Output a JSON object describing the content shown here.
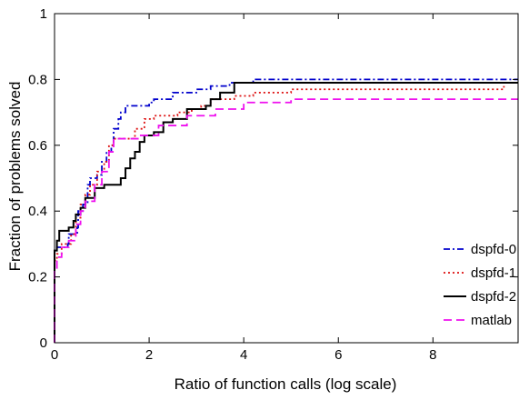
{
  "chart_data": {
    "type": "line",
    "title": "",
    "xlabel": "Ratio of function calls (log scale)",
    "ylabel": "Fraction of problems solved",
    "xlim": [
      0,
      9.8
    ],
    "ylim": [
      0,
      1
    ],
    "xticks": [
      0,
      2,
      4,
      6,
      8
    ],
    "yticks": [
      0,
      0.2,
      0.4,
      0.6,
      0.8,
      1
    ],
    "xtick_labels": [
      "0",
      "2",
      "4",
      "6",
      "8"
    ],
    "ytick_labels": [
      "0",
      "0.2",
      "0.4",
      "0.6",
      "0.8",
      "1"
    ],
    "grid": false,
    "legend_position": "bottom-right",
    "series": [
      {
        "name": "dspfd-0",
        "color": "#0000cc",
        "dash": "dash-dot",
        "points": [
          [
            0,
            0
          ],
          [
            0,
            0.28
          ],
          [
            0.05,
            0.29
          ],
          [
            0.28,
            0.3
          ],
          [
            0.3,
            0.33
          ],
          [
            0.48,
            0.35
          ],
          [
            0.5,
            0.4
          ],
          [
            0.6,
            0.42
          ],
          [
            0.7,
            0.48
          ],
          [
            0.75,
            0.5
          ],
          [
            0.9,
            0.51
          ],
          [
            1.0,
            0.55
          ],
          [
            1.1,
            0.58
          ],
          [
            1.2,
            0.6
          ],
          [
            1.25,
            0.65
          ],
          [
            1.35,
            0.68
          ],
          [
            1.4,
            0.7
          ],
          [
            1.5,
            0.72
          ],
          [
            2.0,
            0.73
          ],
          [
            2.1,
            0.74
          ],
          [
            2.5,
            0.76
          ],
          [
            3.0,
            0.77
          ],
          [
            3.3,
            0.78
          ],
          [
            3.7,
            0.79
          ],
          [
            4.2,
            0.8
          ],
          [
            9.8,
            0.8
          ]
        ]
      },
      {
        "name": "dspfd-1",
        "color": "#dd1111",
        "dash": "dotted",
        "points": [
          [
            0,
            0
          ],
          [
            0,
            0.25
          ],
          [
            0.05,
            0.27
          ],
          [
            0.15,
            0.3
          ],
          [
            0.35,
            0.33
          ],
          [
            0.45,
            0.38
          ],
          [
            0.55,
            0.42
          ],
          [
            0.65,
            0.45
          ],
          [
            0.75,
            0.48
          ],
          [
            0.9,
            0.52
          ],
          [
            1.05,
            0.55
          ],
          [
            1.15,
            0.6
          ],
          [
            1.25,
            0.62
          ],
          [
            1.7,
            0.65
          ],
          [
            1.9,
            0.68
          ],
          [
            2.1,
            0.69
          ],
          [
            2.6,
            0.7
          ],
          [
            2.9,
            0.71
          ],
          [
            3.1,
            0.72
          ],
          [
            3.3,
            0.74
          ],
          [
            3.8,
            0.75
          ],
          [
            4.2,
            0.76
          ],
          [
            5.0,
            0.77
          ],
          [
            9.5,
            0.78
          ]
        ]
      },
      {
        "name": "dspfd-2",
        "color": "#000000",
        "dash": "solid",
        "points": [
          [
            0,
            0
          ],
          [
            0,
            0.28
          ],
          [
            0.05,
            0.31
          ],
          [
            0.1,
            0.34
          ],
          [
            0.3,
            0.35
          ],
          [
            0.4,
            0.37
          ],
          [
            0.45,
            0.39
          ],
          [
            0.55,
            0.41
          ],
          [
            0.65,
            0.44
          ],
          [
            0.85,
            0.47
          ],
          [
            1.05,
            0.48
          ],
          [
            1.4,
            0.5
          ],
          [
            1.5,
            0.53
          ],
          [
            1.6,
            0.56
          ],
          [
            1.7,
            0.58
          ],
          [
            1.8,
            0.61
          ],
          [
            1.9,
            0.63
          ],
          [
            2.1,
            0.64
          ],
          [
            2.3,
            0.67
          ],
          [
            2.5,
            0.68
          ],
          [
            2.8,
            0.71
          ],
          [
            3.2,
            0.72
          ],
          [
            3.3,
            0.74
          ],
          [
            3.5,
            0.76
          ],
          [
            3.8,
            0.79
          ],
          [
            9.8,
            0.79
          ]
        ]
      },
      {
        "name": "matlab",
        "color": "#ee11ee",
        "dash": "dashed",
        "points": [
          [
            0,
            0
          ],
          [
            0,
            0.22
          ],
          [
            0.05,
            0.26
          ],
          [
            0.15,
            0.29
          ],
          [
            0.3,
            0.31
          ],
          [
            0.45,
            0.36
          ],
          [
            0.55,
            0.4
          ],
          [
            0.65,
            0.43
          ],
          [
            0.85,
            0.48
          ],
          [
            1.0,
            0.52
          ],
          [
            1.15,
            0.58
          ],
          [
            1.25,
            0.62
          ],
          [
            1.8,
            0.63
          ],
          [
            2.2,
            0.66
          ],
          [
            2.8,
            0.69
          ],
          [
            3.4,
            0.71
          ],
          [
            4.0,
            0.73
          ],
          [
            5.0,
            0.74
          ],
          [
            9.8,
            0.74
          ]
        ]
      }
    ]
  }
}
